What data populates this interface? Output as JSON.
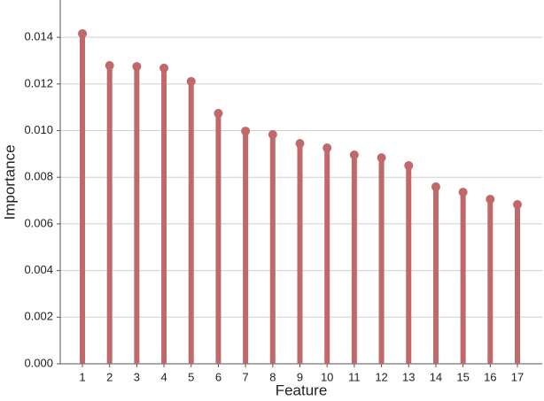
{
  "chart_data": {
    "type": "lollipop",
    "x_label": "Feature",
    "y_label": "Importance",
    "categories": [
      "1",
      "2",
      "3",
      "4",
      "5",
      "6",
      "7",
      "8",
      "9",
      "10",
      "11",
      "12",
      "13",
      "14",
      "15",
      "16",
      "17"
    ],
    "values": [
      0.01416,
      0.01279,
      0.01275,
      0.01268,
      0.01211,
      0.01074,
      0.00998,
      0.00983,
      0.00945,
      0.00926,
      0.00896,
      0.00884,
      0.0085,
      0.00759,
      0.00736,
      0.00706,
      0.00683
    ],
    "color": "#c0686a",
    "ylim": [
      0,
      0.0156
    ],
    "yticks": [
      {
        "value": 0,
        "label": "0.000"
      },
      {
        "value": 0.002,
        "label": "0.002"
      },
      {
        "value": 0.004,
        "label": "0.004"
      },
      {
        "value": 0.006,
        "label": "0.006"
      },
      {
        "value": 0.008,
        "label": "0.008"
      },
      {
        "value": 0.01,
        "label": "0.010"
      },
      {
        "value": 0.012,
        "label": "0.012"
      },
      {
        "value": 0.014,
        "label": "0.014"
      }
    ],
    "grid": true
  }
}
